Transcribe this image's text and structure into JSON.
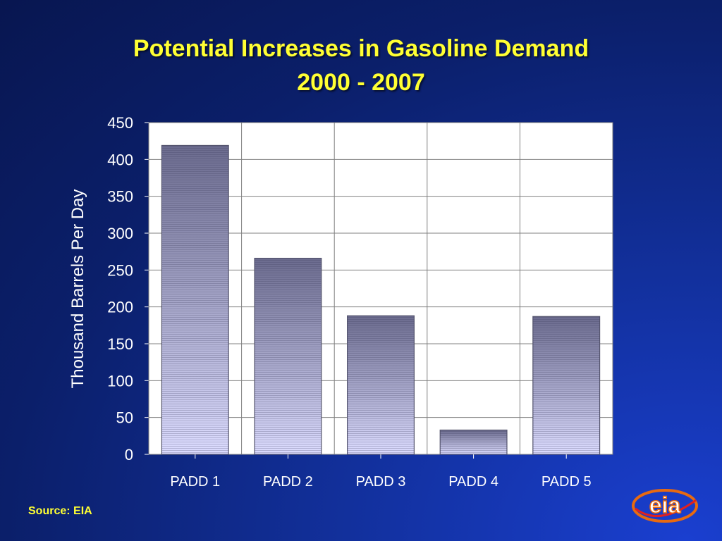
{
  "title_line1": "Potential Increases in Gasoline Demand",
  "title_line2": "2000 - 2007",
  "source": "Source: EIA",
  "logo_text": "eia",
  "chart_data": {
    "type": "bar",
    "categories": [
      "PADD 1",
      "PADD 2",
      "PADD 3",
      "PADD 4",
      "PADD 5"
    ],
    "values": [
      419,
      266,
      188,
      33,
      187
    ],
    "ylabel": "Thousand Barrels Per Day",
    "xlabel": "",
    "ylim": [
      0,
      450
    ],
    "yticks": [
      0,
      50,
      100,
      150,
      200,
      250,
      300,
      350,
      400,
      450
    ],
    "grid": true,
    "legend": "none"
  },
  "colors": {
    "background": "#0b1f6a",
    "title": "#ffff33",
    "axis_text": "#ffffff",
    "plot_bg": "#ffffff",
    "bar_top": "#6b6b8e",
    "bar_bottom": "#dcdcff"
  }
}
